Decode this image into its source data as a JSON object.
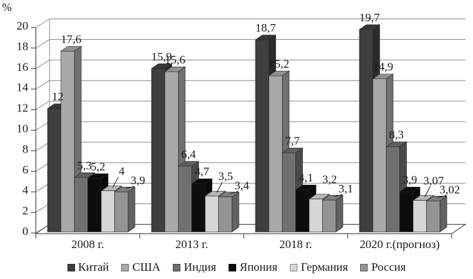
{
  "chart_data": {
    "type": "bar",
    "is_3d": true,
    "title": "",
    "ylabel": "%",
    "xlabel": "",
    "ylim": [
      0,
      20
    ],
    "y_step": 2,
    "y_ticks": [
      "0",
      "2",
      "4",
      "6",
      "8",
      "10",
      "12",
      "14",
      "16",
      "18",
      "20"
    ],
    "grid": true,
    "legend_position": "bottom",
    "categories": [
      "2008 г.",
      "2013 г.",
      "2018 г.",
      "2020 г.(прогноз)"
    ],
    "series": [
      {
        "name": "Китай",
        "color": "#3f3f3f",
        "values": [
          12,
          15.9,
          18.7,
          19.7
        ],
        "display_labels": [
          "12",
          "15,9",
          "18,7",
          "19,7"
        ]
      },
      {
        "name": "США",
        "color": "#a9a9a9",
        "values": [
          17.6,
          15.6,
          15.2,
          14.9
        ],
        "display_labels": [
          "17,6",
          "15,6",
          "15,2",
          "14,9"
        ]
      },
      {
        "name": "Индия",
        "color": "#707070",
        "values": [
          5.3,
          6.4,
          7.7,
          8.3
        ],
        "display_labels": [
          "5,3",
          "6,4",
          "7,7",
          "8,3"
        ]
      },
      {
        "name": "Япония",
        "color": "#0d0d0d",
        "values": [
          5.2,
          4.7,
          4.1,
          3.9
        ],
        "display_labels": [
          "5,2",
          "4,7",
          "4,1",
          "3,9"
        ]
      },
      {
        "name": "Германия",
        "color": "#d6d6d6",
        "values": [
          4,
          3.5,
          3.2,
          3.07
        ],
        "display_labels": [
          "4",
          "3,5",
          "3,2",
          "3,07"
        ]
      },
      {
        "name": "Россия",
        "color": "#949494",
        "values": [
          3.9,
          3.4,
          3.1,
          3.02
        ],
        "display_labels": [
          "3,9",
          "3,4",
          "3,1",
          "3,02"
        ]
      }
    ],
    "callout_labels": {
      "series_4_groups": [
        0,
        1,
        3
      ],
      "series_5_groups": [
        0,
        1,
        2,
        3
      ]
    },
    "axis_color": "#595959",
    "grid_color": "#8c8c8c"
  }
}
